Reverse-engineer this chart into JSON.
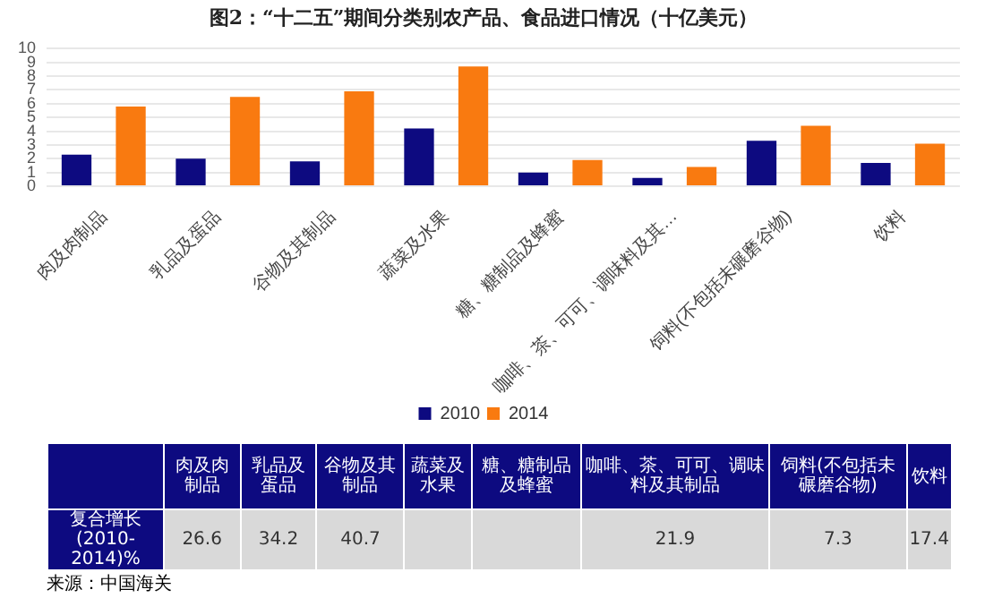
{
  "chart_data": [
    {
      "type": "bar",
      "title": "图2：“十二五”期间分类别农产品、食品进口情况（十亿美元）",
      "categories": [
        "肉及肉制品",
        "乳品及蛋品",
        "谷物及其制品",
        "蔬菜及水果",
        "糖、糖制品及蜂蜜",
        "咖啡、茶、可可、调味料及其…",
        "饲料(不包括未碾磨谷物)",
        "饮料"
      ],
      "series": [
        {
          "name": "2010",
          "color": "#0d0a80",
          "values": [
            2.3,
            2.0,
            1.8,
            4.2,
            1.0,
            0.6,
            3.3,
            1.7
          ]
        },
        {
          "name": "2014",
          "color": "#f97a10",
          "values": [
            5.8,
            6.5,
            6.9,
            8.7,
            1.9,
            1.4,
            4.4,
            3.1
          ]
        }
      ],
      "ylim": [
        0,
        10
      ],
      "yticks": [
        0,
        1,
        2,
        3,
        4,
        5,
        6,
        7,
        8,
        9,
        10
      ],
      "grid": "y",
      "legend": "bottom",
      "annotations": [
        "来源：中国海关"
      ]
    },
    {
      "type": "other",
      "ylabel": "复合增长(2010-2014)%",
      "categories": [
        "肉及肉制品",
        "乳品及蛋品",
        "谷物及其制品",
        "蔬菜及水果",
        "糖、糖制品及蜂蜜",
        "咖啡、茶、可可、调味料及其制品",
        "饲料(不包括未碾磨谷物)",
        "饮料"
      ],
      "values": [
        26.6,
        34.2,
        40.7,
        null,
        null,
        21.9,
        7.3,
        17.4
      ],
      "data_labels": true
    }
  ]
}
